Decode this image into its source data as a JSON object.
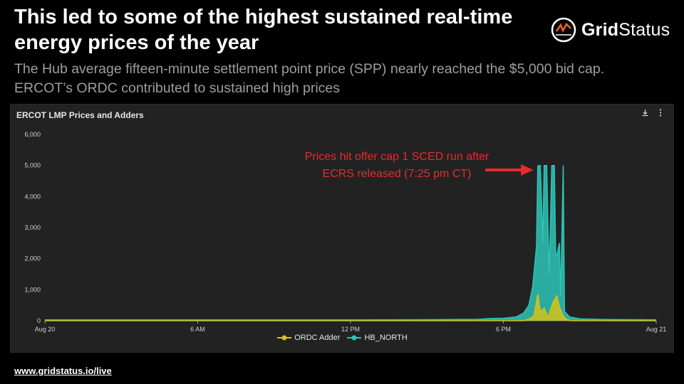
{
  "header": {
    "title": "This led to some of the highest sustained real-time energy prices of the year",
    "subtitle": "The Hub average fifteen-minute settlement point price (SPP) nearly reached the $5,000 bid cap. ERCOT’s ORDC contributed to sustained high prices"
  },
  "logo": {
    "text_bold": "Grid",
    "text_regular": "Status",
    "icon": "grid-status-logo-icon"
  },
  "panel": {
    "title": "ERCOT LMP Prices and Adders",
    "download_icon": "download-icon",
    "menu_icon": "more-vertical-icon"
  },
  "annotation": {
    "text": "Prices hit offer cap 1 SCED run after ECRS released (7:25 pm CT)"
  },
  "footer": {
    "link": "www.gridstatus.io/live"
  },
  "colors": {
    "hb_north": "#2ec4b6",
    "ordc": "#d4c21a",
    "annotation": "#e52b2b"
  },
  "chart_data": {
    "type": "area",
    "title": "ERCOT LMP Prices and Adders",
    "xlabel": "",
    "ylabel": "",
    "x_ticks": [
      "Aug 20",
      "6 AM",
      "12 PM",
      "6 PM",
      "Aug 21"
    ],
    "y_ticks": [
      "6,000",
      "5,000",
      "4,000",
      "3,000",
      "2,000",
      "1,000",
      "0"
    ],
    "ylim": [
      0,
      6000
    ],
    "xlim_hours": [
      0,
      24
    ],
    "grid": false,
    "legend": "bottom-center",
    "series": [
      {
        "name": "HB_NORTH",
        "color": "#2ec4b6",
        "points": [
          [
            0,
            30
          ],
          [
            6,
            30
          ],
          [
            12,
            28
          ],
          [
            15,
            35
          ],
          [
            17,
            45
          ],
          [
            17.5,
            70
          ],
          [
            18,
            80
          ],
          [
            18.5,
            120
          ],
          [
            18.8,
            250
          ],
          [
            19.0,
            500
          ],
          [
            19.15,
            1100
          ],
          [
            19.3,
            2400
          ],
          [
            19.35,
            4980
          ],
          [
            19.45,
            5000
          ],
          [
            19.55,
            2500
          ],
          [
            19.6,
            5000
          ],
          [
            19.7,
            5000
          ],
          [
            19.75,
            3000
          ],
          [
            19.8,
            1500
          ],
          [
            19.9,
            5000
          ],
          [
            20.0,
            5000
          ],
          [
            20.05,
            2200
          ],
          [
            20.1,
            2100
          ],
          [
            20.2,
            2500
          ],
          [
            20.25,
            800
          ],
          [
            20.35,
            5000
          ],
          [
            20.4,
            300
          ],
          [
            20.6,
            120
          ],
          [
            21,
            60
          ],
          [
            22,
            40
          ],
          [
            24,
            30
          ]
        ]
      },
      {
        "name": "ORDC Adder",
        "color": "#d4c21a",
        "points": [
          [
            0,
            0
          ],
          [
            18.8,
            0
          ],
          [
            19.0,
            50
          ],
          [
            19.2,
            150
          ],
          [
            19.35,
            850
          ],
          [
            19.45,
            300
          ],
          [
            19.6,
            400
          ],
          [
            19.75,
            100
          ],
          [
            19.95,
            600
          ],
          [
            20.1,
            800
          ],
          [
            20.2,
            450
          ],
          [
            20.35,
            150
          ],
          [
            20.5,
            30
          ],
          [
            20.7,
            0
          ],
          [
            24,
            0
          ]
        ]
      }
    ]
  }
}
